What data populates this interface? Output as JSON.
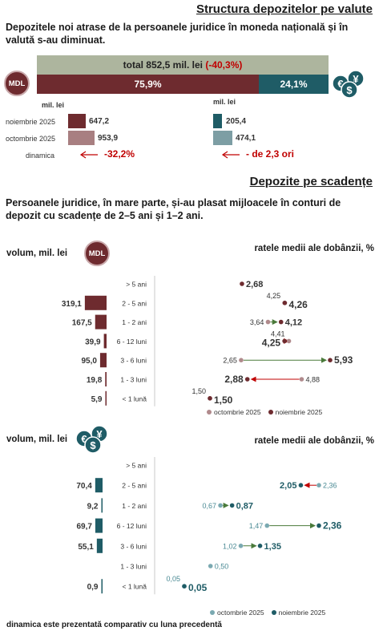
{
  "section1": {
    "title": "Structura depozitelor pe valute",
    "intro": "Depozitele noi atrase de la persoanele juridice în moneda națională și în valută s-au diminuat.",
    "total_label": "total 852,5 mil. lei",
    "total_change": "(-40,3%)",
    "share_mdl": "75,9%",
    "share_fx": "24,1%",
    "unit_mdl": "mil. lei",
    "unit_fx": "mil. lei",
    "row_nov": "noiembrie 2025",
    "row_oct": "octombrie 2025",
    "row_dyn": "dinamica",
    "mdl_nov": "647,2",
    "mdl_oct": "953,9",
    "mdl_dyn": "-32,2%",
    "fx_nov": "205,4",
    "fx_oct": "474,1",
    "fx_dyn": "- de 2,3 ori",
    "badge": "MDL"
  },
  "section2": {
    "title": "Depozite pe scadențe",
    "intro": "Persoanele juridice, în mare parte, și-au plasat mijloacele în conturi de depozit cu scadențe de 2–5 ani și 1–2 ani.",
    "panel1_volume_label": "volum, mil. lei",
    "panel1_rate_label": "ratele medii ale dobânzii, %",
    "panel2_volume_label": "volum, mil. lei",
    "panel2_rate_label": "ratele medii ale dobânzii, %",
    "badge": "MDL",
    "legend_oct": "octombrie 2025",
    "legend_nov": "noiembrie 2025",
    "footnote": "dinamica este prezentată comparativ cu luna precedentă"
  },
  "colors": {
    "mdl": "#6e2b2f",
    "mdl_light": "#a87f81",
    "fx": "#1f5c66",
    "fx_light": "#7d9ea4",
    "total_bar": "#adb59e",
    "arrow_green": "#4a7a3a",
    "arrow_red": "#c00000",
    "dot_oct_mdl": "#b08a8c",
    "dot_oct_fx": "#7aa9b1"
  },
  "chart_data": [
    {
      "type": "bar",
      "orientation": "horizontal",
      "title": "",
      "ylabel": "volum, mil. lei",
      "categories": [
        "> 5 ani",
        "2 - 5 ani",
        "1 - 2 ani",
        "6 - 12 luni",
        "3 - 6 luni",
        "1 - 3 luni",
        "< 1 lună"
      ],
      "series": [
        {
          "name": "",
          "values": [
            null,
            319.1,
            167.5,
            39.9,
            95.0,
            19.8,
            5.9
          ],
          "labels": [
            "",
            "319,1",
            "167,5",
            "39,9",
            "95,0",
            "19,8",
            "5,9"
          ]
        }
      ]
    },
    {
      "type": "scatter",
      "title": "",
      "xlabel": "ratele medii ale dobânzii, %",
      "categories": [
        "> 5 ani",
        "2 - 5 ani",
        "1 - 2 ani",
        "6 - 12 luni",
        "3 - 6 luni",
        "1 - 3 luni",
        "< 1 lună"
      ],
      "series": [
        {
          "name": "octombrie 2025",
          "values": [
            null,
            4.25,
            3.64,
            4.41,
            2.65,
            4.88,
            1.5
          ],
          "labels": [
            "",
            "4,25",
            "3,64",
            "4,41",
            "2,65",
            "4,88",
            "1,50"
          ]
        },
        {
          "name": "noiembrie 2025",
          "values": [
            2.68,
            4.26,
            4.12,
            4.25,
            5.93,
            2.88,
            1.5
          ],
          "labels": [
            "2,68",
            "4,26",
            "4,12",
            "4,25",
            "5,93",
            "2,88",
            "1,50"
          ]
        }
      ]
    },
    {
      "type": "bar",
      "orientation": "horizontal",
      "title": "",
      "ylabel": "volum, mil. lei",
      "categories": [
        "> 5 ani",
        "2 - 5 ani",
        "1 - 2 ani",
        "6 - 12 luni",
        "3 - 6 luni",
        "1 - 3 luni",
        "< 1 lună"
      ],
      "series": [
        {
          "name": "",
          "values": [
            null,
            70.4,
            9.2,
            69.7,
            55.1,
            null,
            0.9
          ],
          "labels": [
            "",
            "70,4",
            "9,2",
            "69,7",
            "55,1",
            "",
            "0,9"
          ]
        }
      ]
    },
    {
      "type": "scatter",
      "title": "",
      "xlabel": "ratele medii ale dobânzii, %",
      "categories": [
        "> 5 ani",
        "2 - 5 ani",
        "1 - 2 ani",
        "6 - 12 luni",
        "3 - 6 luni",
        "1 - 3 luni",
        "< 1 lună"
      ],
      "series": [
        {
          "name": "octombrie 2025",
          "values": [
            null,
            2.36,
            0.67,
            1.47,
            1.02,
            0.5,
            0.05
          ],
          "labels": [
            "",
            "2,36",
            "0,67",
            "1,47",
            "1,02",
            "0,50",
            "0,05"
          ]
        },
        {
          "name": "noiembrie 2025",
          "values": [
            null,
            2.05,
            0.87,
            2.36,
            1.35,
            null,
            0.05
          ],
          "labels": [
            "",
            "2,05",
            "0,87",
            "2,36",
            "1,35",
            "",
            "0,05"
          ]
        }
      ]
    }
  ]
}
